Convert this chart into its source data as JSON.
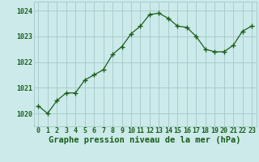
{
  "x": [
    0,
    1,
    2,
    3,
    4,
    5,
    6,
    7,
    8,
    9,
    10,
    11,
    12,
    13,
    14,
    15,
    16,
    17,
    18,
    19,
    20,
    21,
    22,
    23
  ],
  "y": [
    1020.3,
    1020.0,
    1020.5,
    1020.8,
    1020.8,
    1021.3,
    1021.5,
    1021.7,
    1022.3,
    1022.6,
    1023.1,
    1023.4,
    1023.85,
    1023.9,
    1023.7,
    1023.4,
    1023.35,
    1023.0,
    1022.5,
    1022.4,
    1022.4,
    1022.65,
    1023.2,
    1023.4
  ],
  "line_color": "#1a5e1a",
  "marker": "+",
  "marker_size": 5,
  "bg_color": "#cceaea",
  "grid_color": "#a8cccc",
  "xlabel": "Graphe pression niveau de la mer (hPa)",
  "xlabel_color": "#1a5e1a",
  "xlabel_fontsize": 7.5,
  "tick_color": "#1a5e1a",
  "tick_fontsize": 6,
  "ylim": [
    1019.5,
    1024.35
  ],
  "xlim": [
    -0.5,
    23.5
  ],
  "yticks": [
    1020,
    1021,
    1022,
    1023,
    1024
  ],
  "xticks": [
    0,
    1,
    2,
    3,
    4,
    5,
    6,
    7,
    8,
    9,
    10,
    11,
    12,
    13,
    14,
    15,
    16,
    17,
    18,
    19,
    20,
    21,
    22,
    23
  ]
}
